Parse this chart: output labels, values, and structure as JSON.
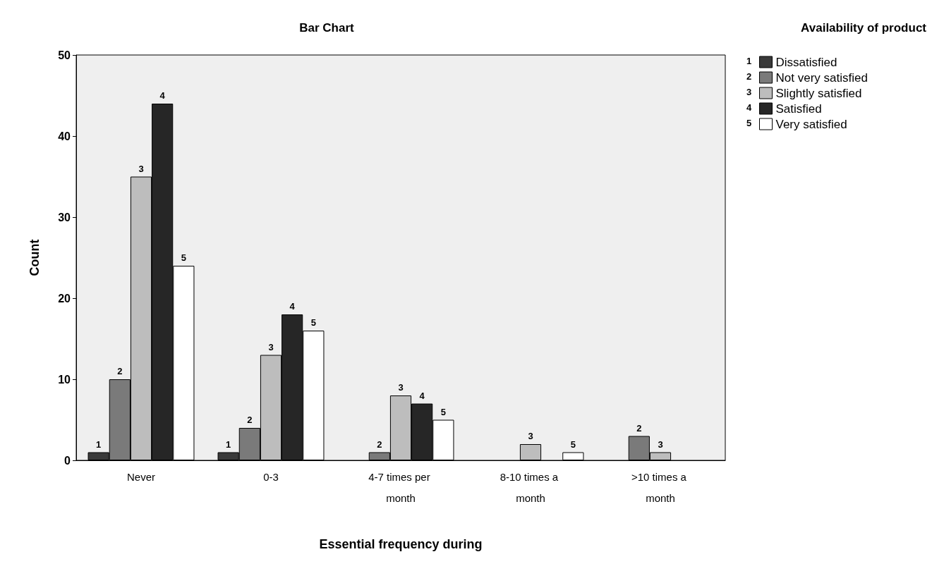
{
  "chart_data": {
    "type": "bar",
    "title": "Bar Chart",
    "xlabel": "Essential frequency during",
    "ylabel": "Count",
    "legend_title": "Availability of product",
    "categories": [
      "Never",
      "0-3",
      "4-7 times per month",
      "8-10 times a month",
      ">10 times a month"
    ],
    "series": [
      {
        "name": "Dissatisfied",
        "color": "#3a3a3a",
        "values": [
          1,
          1,
          null,
          null,
          null
        ]
      },
      {
        "name": "Not very satisfied",
        "color": "#7a7a7a",
        "values": [
          10,
          4,
          1,
          null,
          3
        ]
      },
      {
        "name": "Slightly satisfied",
        "color": "#bdbdbd",
        "values": [
          35,
          13,
          8,
          2,
          1
        ]
      },
      {
        "name": "Satisfied",
        "color": "#262626",
        "values": [
          44,
          18,
          7,
          null,
          null
        ]
      },
      {
        "name": "Very satisfied",
        "color": "#ffffff",
        "values": [
          24,
          16,
          5,
          1,
          null
        ]
      }
    ],
    "annotations": [
      "1",
      "2",
      "3",
      "4",
      "5",
      "1",
      "2",
      "3",
      "4",
      "5",
      "2",
      "3",
      "4",
      "5",
      "3",
      "5",
      "2",
      "3"
    ],
    "ylim": [
      0,
      50
    ],
    "yticks": [
      0,
      10,
      20,
      30,
      40,
      50
    ],
    "grid": false,
    "legend": "top right"
  }
}
